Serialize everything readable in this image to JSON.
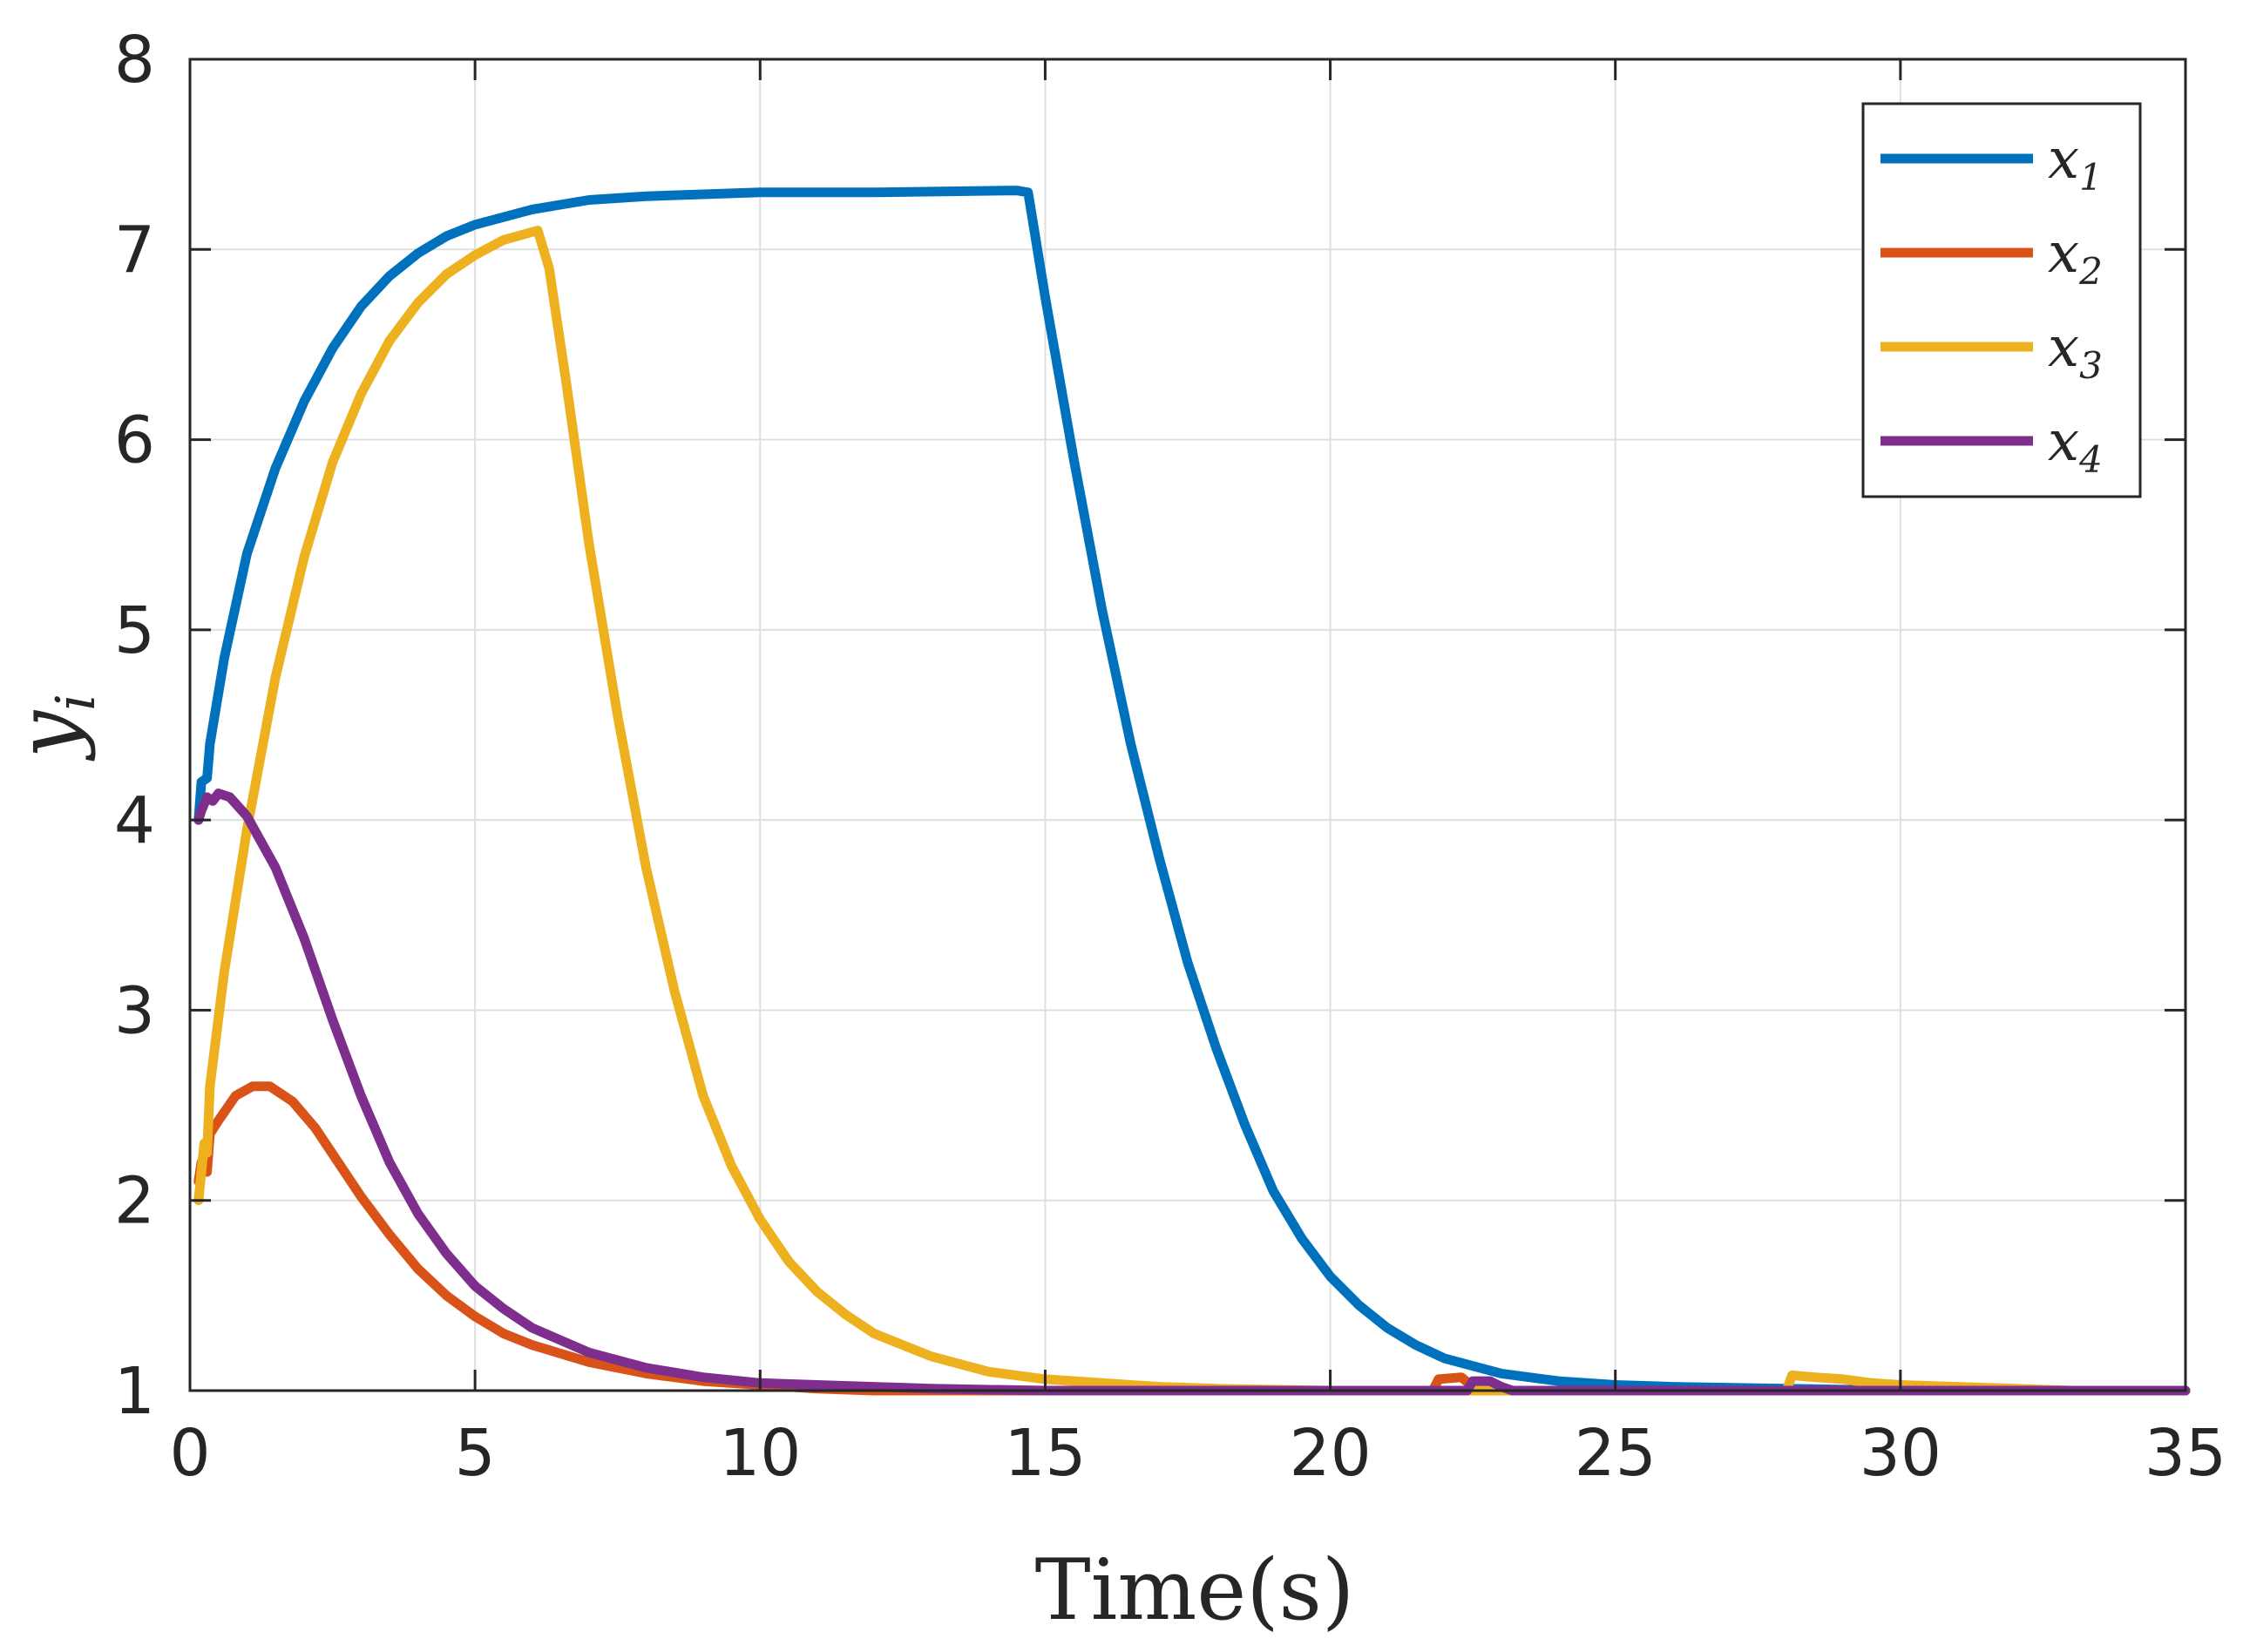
{
  "chart_data": {
    "type": "line",
    "xlabel": "Time(s)",
    "ylabel": {
      "main": "y",
      "sub": "i"
    },
    "xlim": [
      0,
      35
    ],
    "ylim": [
      1,
      8
    ],
    "xticks": [
      0,
      5,
      10,
      15,
      20,
      25,
      30,
      35
    ],
    "yticks": [
      1,
      2,
      3,
      4,
      5,
      6,
      7,
      8
    ],
    "grid": true,
    "legend_position": "top-right",
    "series": [
      {
        "name": {
          "main": "x",
          "sub": "1"
        },
        "color": "#0072BD",
        "points": [
          [
            0.15,
            4.0
          ],
          [
            0.2,
            4.2
          ],
          [
            0.3,
            4.22
          ],
          [
            0.35,
            4.4
          ],
          [
            0.6,
            4.85
          ],
          [
            1.0,
            5.4
          ],
          [
            1.5,
            5.85
          ],
          [
            2.0,
            6.2
          ],
          [
            2.5,
            6.48
          ],
          [
            3.0,
            6.7
          ],
          [
            3.5,
            6.86
          ],
          [
            4.0,
            6.98
          ],
          [
            4.5,
            7.07
          ],
          [
            5.0,
            7.13
          ],
          [
            6.0,
            7.21
          ],
          [
            7.0,
            7.26
          ],
          [
            8.0,
            7.28
          ],
          [
            9.0,
            7.29
          ],
          [
            10.0,
            7.3
          ],
          [
            12.0,
            7.3
          ],
          [
            14.5,
            7.31
          ],
          [
            14.7,
            7.3
          ],
          [
            15.0,
            6.75
          ],
          [
            15.5,
            5.9
          ],
          [
            16.0,
            5.1
          ],
          [
            16.5,
            4.4
          ],
          [
            17.0,
            3.8
          ],
          [
            17.5,
            3.25
          ],
          [
            18.0,
            2.8
          ],
          [
            18.5,
            2.4
          ],
          [
            19.0,
            2.05
          ],
          [
            19.5,
            1.8
          ],
          [
            20.0,
            1.6
          ],
          [
            20.5,
            1.45
          ],
          [
            21.0,
            1.33
          ],
          [
            21.5,
            1.24
          ],
          [
            22.0,
            1.17
          ],
          [
            23.0,
            1.09
          ],
          [
            24.0,
            1.05
          ],
          [
            25.0,
            1.03
          ],
          [
            26.0,
            1.02
          ],
          [
            28.0,
            1.01
          ],
          [
            30.0,
            1.0
          ],
          [
            35.0,
            1.0
          ]
        ]
      },
      {
        "name": {
          "main": "x",
          "sub": "2"
        },
        "color": "#D95319",
        "points": [
          [
            0.15,
            2.1
          ],
          [
            0.2,
            2.2
          ],
          [
            0.3,
            2.15
          ],
          [
            0.35,
            2.35
          ],
          [
            0.5,
            2.42
          ],
          [
            0.8,
            2.55
          ],
          [
            1.1,
            2.6
          ],
          [
            1.4,
            2.6
          ],
          [
            1.8,
            2.52
          ],
          [
            2.2,
            2.38
          ],
          [
            2.6,
            2.2
          ],
          [
            3.0,
            2.02
          ],
          [
            3.5,
            1.82
          ],
          [
            4.0,
            1.64
          ],
          [
            4.5,
            1.5
          ],
          [
            5.0,
            1.39
          ],
          [
            5.5,
            1.3
          ],
          [
            6.0,
            1.24
          ],
          [
            7.0,
            1.15
          ],
          [
            8.0,
            1.09
          ],
          [
            9.0,
            1.05
          ],
          [
            10.0,
            1.03
          ],
          [
            11.0,
            1.01
          ],
          [
            12.0,
            1.0
          ],
          [
            21.8,
            1.0
          ],
          [
            21.9,
            1.06
          ],
          [
            22.3,
            1.07
          ],
          [
            22.5,
            1.02
          ],
          [
            22.6,
            1.0
          ],
          [
            35.0,
            1.0
          ]
        ]
      },
      {
        "name": {
          "main": "x",
          "sub": "3"
        },
        "color": "#EDB120",
        "points": [
          [
            0.15,
            2.0
          ],
          [
            0.25,
            2.3
          ],
          [
            0.3,
            2.25
          ],
          [
            0.35,
            2.6
          ],
          [
            0.6,
            3.2
          ],
          [
            1.0,
            3.95
          ],
          [
            1.5,
            4.75
          ],
          [
            2.0,
            5.38
          ],
          [
            2.5,
            5.88
          ],
          [
            3.0,
            6.24
          ],
          [
            3.5,
            6.52
          ],
          [
            4.0,
            6.72
          ],
          [
            4.5,
            6.87
          ],
          [
            5.0,
            6.97
          ],
          [
            5.5,
            7.05
          ],
          [
            6.1,
            7.1
          ],
          [
            6.3,
            6.9
          ],
          [
            6.6,
            6.3
          ],
          [
            7.0,
            5.45
          ],
          [
            7.5,
            4.55
          ],
          [
            8.0,
            3.75
          ],
          [
            8.5,
            3.1
          ],
          [
            9.0,
            2.55
          ],
          [
            9.5,
            2.18
          ],
          [
            10.0,
            1.9
          ],
          [
            10.5,
            1.68
          ],
          [
            11.0,
            1.52
          ],
          [
            11.5,
            1.4
          ],
          [
            12.0,
            1.3
          ],
          [
            13.0,
            1.18
          ],
          [
            14.0,
            1.1
          ],
          [
            15.0,
            1.06
          ],
          [
            16.0,
            1.04
          ],
          [
            17.0,
            1.02
          ],
          [
            18.0,
            1.01
          ],
          [
            20.0,
            1.0
          ],
          [
            28.0,
            1.0
          ],
          [
            28.1,
            1.08
          ],
          [
            28.5,
            1.07
          ],
          [
            29.0,
            1.06
          ],
          [
            29.5,
            1.04
          ],
          [
            30.0,
            1.03
          ],
          [
            31.0,
            1.02
          ],
          [
            32.0,
            1.01
          ],
          [
            33.0,
            1.0
          ],
          [
            35.0,
            1.0
          ]
        ]
      },
      {
        "name": {
          "main": "x",
          "sub": "4"
        },
        "color": "#7E2F8E",
        "points": [
          [
            0.15,
            4.0
          ],
          [
            0.2,
            4.05
          ],
          [
            0.3,
            4.12
          ],
          [
            0.4,
            4.1
          ],
          [
            0.5,
            4.14
          ],
          [
            0.7,
            4.12
          ],
          [
            1.0,
            4.02
          ],
          [
            1.5,
            3.75
          ],
          [
            2.0,
            3.38
          ],
          [
            2.5,
            2.95
          ],
          [
            3.0,
            2.55
          ],
          [
            3.5,
            2.2
          ],
          [
            4.0,
            1.93
          ],
          [
            4.5,
            1.72
          ],
          [
            5.0,
            1.55
          ],
          [
            5.5,
            1.43
          ],
          [
            6.0,
            1.33
          ],
          [
            7.0,
            1.2
          ],
          [
            8.0,
            1.12
          ],
          [
            9.0,
            1.07
          ],
          [
            10.0,
            1.04
          ],
          [
            11.0,
            1.03
          ],
          [
            12.0,
            1.02
          ],
          [
            13.0,
            1.01
          ],
          [
            15.0,
            1.0
          ],
          [
            22.4,
            1.0
          ],
          [
            22.5,
            1.05
          ],
          [
            22.8,
            1.05
          ],
          [
            23.0,
            1.02
          ],
          [
            23.2,
            1.0
          ],
          [
            35.0,
            1.0
          ]
        ]
      }
    ]
  }
}
